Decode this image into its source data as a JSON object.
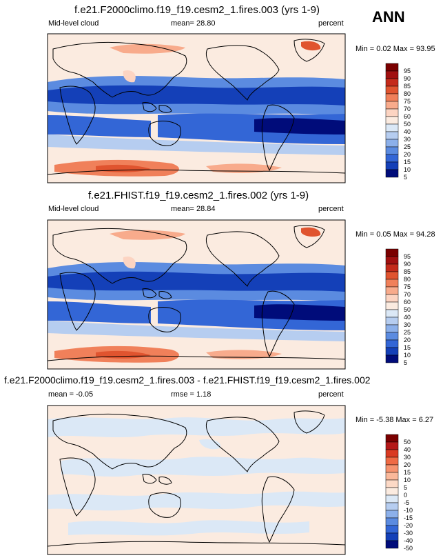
{
  "season": "ANN",
  "panels": [
    {
      "title": "f.e21.F2000climo.f19_f19.cesm2_1.fires.003 (yrs 1-9)",
      "left": "Mid-level cloud",
      "center": "mean=  28.80",
      "right": "percent",
      "minmax": "Min =   0.02 Max =  93.95",
      "levels": [
        "95",
        "90",
        "85",
        "80",
        "75",
        "70",
        "60",
        "50",
        "40",
        "30",
        "25",
        "20",
        "15",
        "10",
        "5"
      ]
    },
    {
      "title": "f.e21.FHIST.f19_f19.cesm2_1.fires.002 (yrs 1-9)",
      "left": "Mid-level cloud",
      "center": "mean=  28.84",
      "right": "percent",
      "minmax": "Min =   0.05 Max =  94.28",
      "levels": [
        "95",
        "90",
        "85",
        "80",
        "75",
        "70",
        "60",
        "50",
        "40",
        "30",
        "25",
        "20",
        "15",
        "10",
        "5"
      ]
    },
    {
      "title": "f.e21.F2000climo.f19_f19.cesm2_1.fires.003 - f.e21.FHIST.f19_f19.cesm2_1.fires.002",
      "left": "mean =  -0.05",
      "center": "rmse =   1.18",
      "right": "percent",
      "minmax": "Min =  -5.38 Max =   6.27",
      "levels": [
        "50",
        "40",
        "30",
        "20",
        "15",
        "10",
        "5",
        "0",
        "-5",
        "-10",
        "-15",
        "-20",
        "-30",
        "-40",
        "-50"
      ]
    }
  ],
  "colors": {
    "abs_scale": [
      "#7a0000",
      "#a11010",
      "#c42a1a",
      "#e0542f",
      "#f0805a",
      "#f8ab8c",
      "#fcd4c2",
      "#fbebe0",
      "#dbe8f6",
      "#b6cdf0",
      "#8cb0ea",
      "#5b8be0",
      "#3366d6",
      "#1440b8",
      "#000c7a"
    ],
    "diff_scale": [
      "#7a0000",
      "#b41818",
      "#d93a22",
      "#ef6a44",
      "#f6936f",
      "#fab89a",
      "#fcd9c6",
      "#fbebe0",
      "#dbe8f6",
      "#b6cdf0",
      "#8cb0ea",
      "#5b8be0",
      "#3366d6",
      "#1440b8",
      "#000c7a"
    ]
  }
}
